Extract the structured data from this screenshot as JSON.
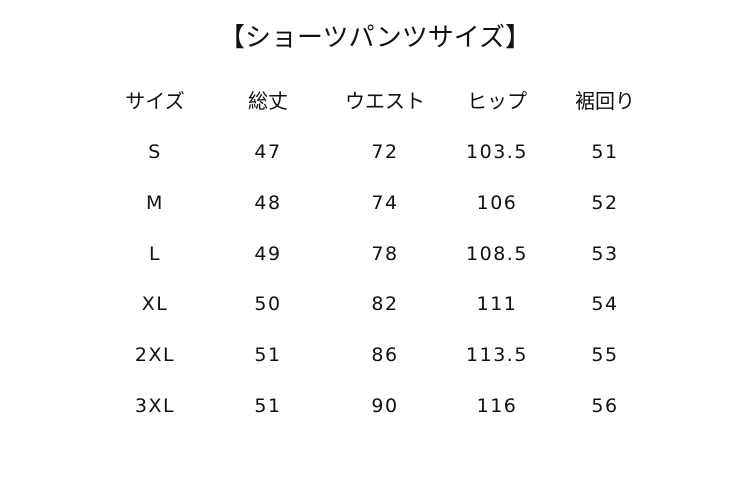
{
  "title": "【ショーツパンツサイズ】",
  "headers": [
    "サイズ",
    "総丈",
    "ウエスト",
    "ヒップ",
    "裾回り"
  ],
  "rows": [
    [
      "S",
      "47",
      "72",
      "103.5",
      "51"
    ],
    [
      "M",
      "48",
      "74",
      "106",
      "52"
    ],
    [
      "L",
      "49",
      "78",
      "108.5",
      "53"
    ],
    [
      "XL",
      "50",
      "82",
      "111",
      "54"
    ],
    [
      "2XL",
      "51",
      "86",
      "113.5",
      "55"
    ],
    [
      "3XL",
      "51",
      "90",
      "116",
      "56"
    ]
  ]
}
